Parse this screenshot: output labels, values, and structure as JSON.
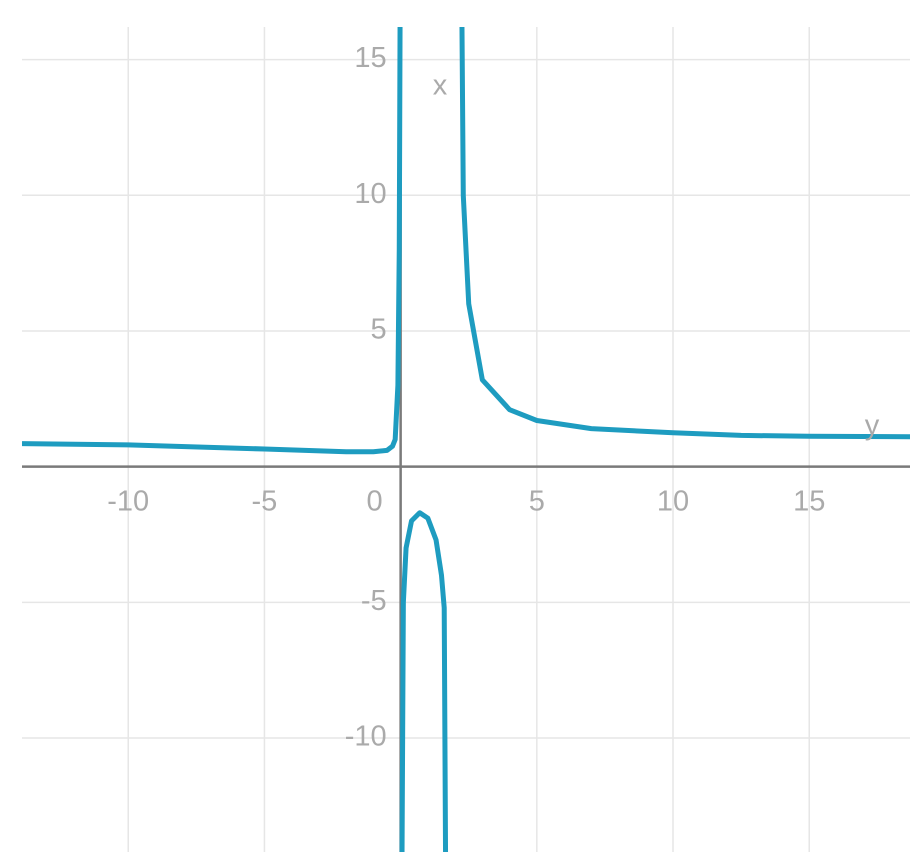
{
  "chart_data": {
    "type": "line",
    "x_label": "y",
    "y_label": "x",
    "xlim": [
      -13.9,
      18.7
    ],
    "ylim": [
      -14.2,
      16.2
    ],
    "xticks": [
      -10,
      -5,
      0,
      5,
      10,
      15
    ],
    "yticks": [
      -10,
      -5,
      5,
      10,
      15
    ],
    "grid": true,
    "x": [
      -13.9,
      -10,
      -5,
      -2,
      -1,
      -0.5,
      -0.3,
      -0.2,
      -0.1,
      -0.05,
      -0.02,
      0,
      0.05,
      0.1,
      0.2,
      0.4,
      0.7,
      1.0,
      1.3,
      1.5,
      1.6,
      1.65,
      2,
      2.25,
      2.3,
      2.5,
      3,
      4,
      5,
      7,
      10,
      12.5,
      15,
      18.7
    ],
    "series": [
      {
        "color": "#1e9cc0",
        "values": [
          0.85,
          0.8,
          0.65,
          0.55,
          0.55,
          0.6,
          0.75,
          1.0,
          3,
          8,
          16.5,
          null,
          -14.5,
          -5,
          -3,
          -2,
          -1.7,
          -1.9,
          -2.7,
          -4,
          -5.2,
          -14.5,
          null,
          16.5,
          10,
          6,
          3.2,
          2.1,
          1.7,
          1.4,
          1.25,
          1.15,
          1.12,
          1.1
        ]
      }
    ]
  }
}
